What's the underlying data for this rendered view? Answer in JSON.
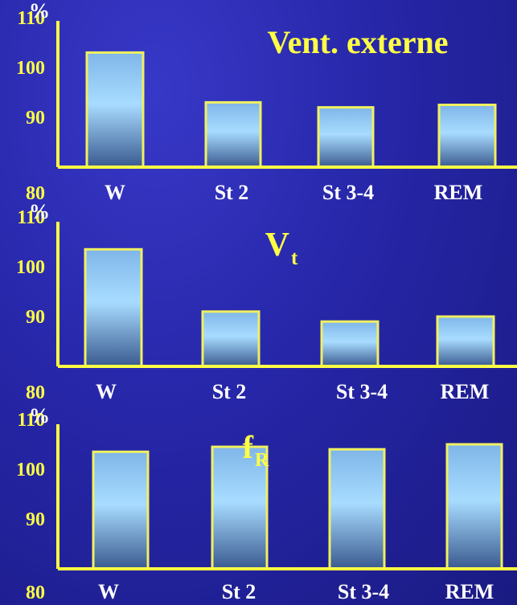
{
  "chart_data": [
    {
      "type": "bar",
      "title": "Vent. externe",
      "title_sub": "",
      "ylabel": "%",
      "ylim": [
        80,
        110
      ],
      "yticks": [
        "80",
        "90",
        "100",
        "110"
      ],
      "categories": [
        "W",
        "St 2",
        "St 3-4",
        "REM"
      ],
      "values": [
        103,
        93,
        92,
        92.5
      ]
    },
    {
      "type": "bar",
      "title": "V",
      "title_sub": "t",
      "ylabel": "%",
      "ylim": [
        80,
        110
      ],
      "yticks": [
        "80",
        "90",
        "100",
        "110"
      ],
      "categories": [
        "W",
        "St 2",
        "St 3-4",
        "REM"
      ],
      "values": [
        103.5,
        91,
        89,
        90
      ]
    },
    {
      "type": "bar",
      "title": "f",
      "title_sub": "R",
      "ylabel": "%",
      "ylim": [
        80,
        110
      ],
      "yticks": [
        "80",
        "90",
        "100",
        "110"
      ],
      "categories": [
        "W",
        "St 2",
        "St 3-4",
        "REM"
      ],
      "values": [
        103.5,
        104.5,
        104,
        105
      ]
    }
  ],
  "colors": {
    "axis": "#ffff44",
    "bar_outline": "#f0f060",
    "bar_light": "#a8dcff",
    "bar_dark": "#3a5a90"
  }
}
